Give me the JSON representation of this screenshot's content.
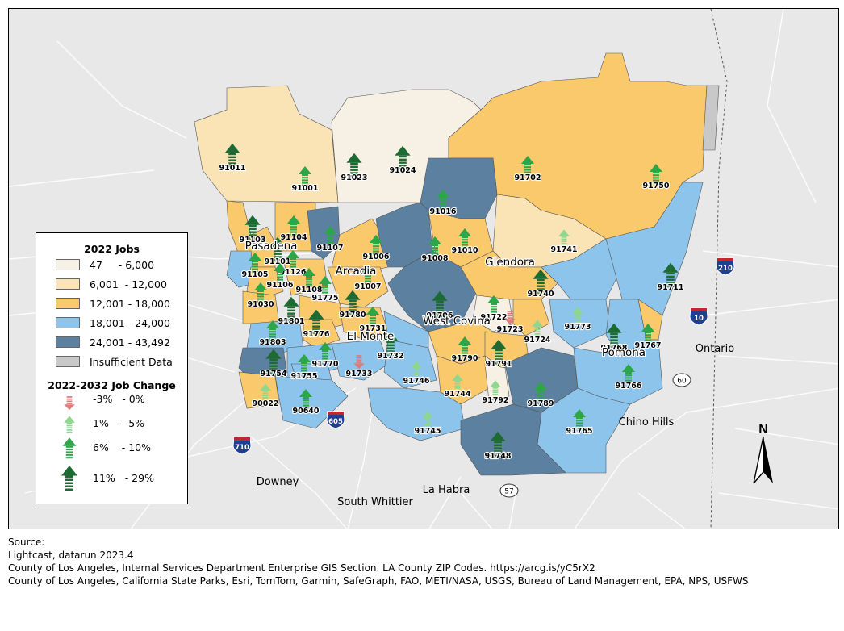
{
  "map": {
    "colors": {
      "c1": "#f7f0e4",
      "c2": "#fae3b5",
      "c3": "#f9c96b",
      "c4": "#8cc4ec",
      "c5": "#5c80a0",
      "na": "#c8c8c8",
      "arrow_red": "#e07b7b",
      "arrow_light": "#8fd68f",
      "arrow_mid": "#2da64a",
      "arrow_dark": "#1d6a33"
    },
    "zips": [
      "91011",
      "91001",
      "91023",
      "91024",
      "91702",
      "91750",
      "91016",
      "91103",
      "91104",
      "91107",
      "91010",
      "91741",
      "91006",
      "91008",
      "91101",
      "91126",
      "91105",
      "91106",
      "91108",
      "91007",
      "91740",
      "91711",
      "91030",
      "91775",
      "91780",
      "91706",
      "91722",
      "91723",
      "91773",
      "91801",
      "91776",
      "91731",
      "91724",
      "91768",
      "91767",
      "91803",
      "91732",
      "91790",
      "91791",
      "91754",
      "91770",
      "91755",
      "91733",
      "91746",
      "91744",
      "91792",
      "91789",
      "91766",
      "90022",
      "90640",
      "91745",
      "91765",
      "91748"
    ],
    "cities": [
      "Pasadena",
      "Arcadia",
      "Glendora",
      "West Covina",
      "El Monte",
      "Pomona",
      "Ontario",
      "Chino Hills",
      "Downey",
      "South Whittier",
      "La Habra"
    ],
    "highways": [
      "210",
      "10",
      "60",
      "605",
      "710",
      "57"
    ],
    "north": "N"
  },
  "legend": {
    "jobs_title": "2022 Jobs",
    "jobs_items": [
      {
        "from": "47",
        "to": "6,000"
      },
      {
        "from": "6,001",
        "to": "12,000"
      },
      {
        "from": "12,001",
        "to": "18,000"
      },
      {
        "from": "18,001",
        "to": "24,000"
      },
      {
        "from": "24,001",
        "to": "43,492"
      }
    ],
    "na_label": "Insufficient Data",
    "change_title": "2022-2032 Job Change",
    "change_items": [
      {
        "from": "-3%",
        "to": "0%"
      },
      {
        "from": "1%",
        "to": "5%"
      },
      {
        "from": "6%",
        "to": "10%"
      },
      {
        "from": "11%",
        "to": "29%"
      }
    ]
  },
  "source": [
    "Source:",
    "Lightcast, datarun 2023.4",
    "County of Los Angeles, Internal Services Department Enterprise GIS Section. LA County ZIP Codes. https://arcg.is/yC5rX2",
    "County of Los Angeles, California State Parks, Esri, TomTom, Garmin, SafeGraph, FAO, METI/NASA, USGS, Bureau of Land Management, EPA, NPS, USFWS"
  ]
}
